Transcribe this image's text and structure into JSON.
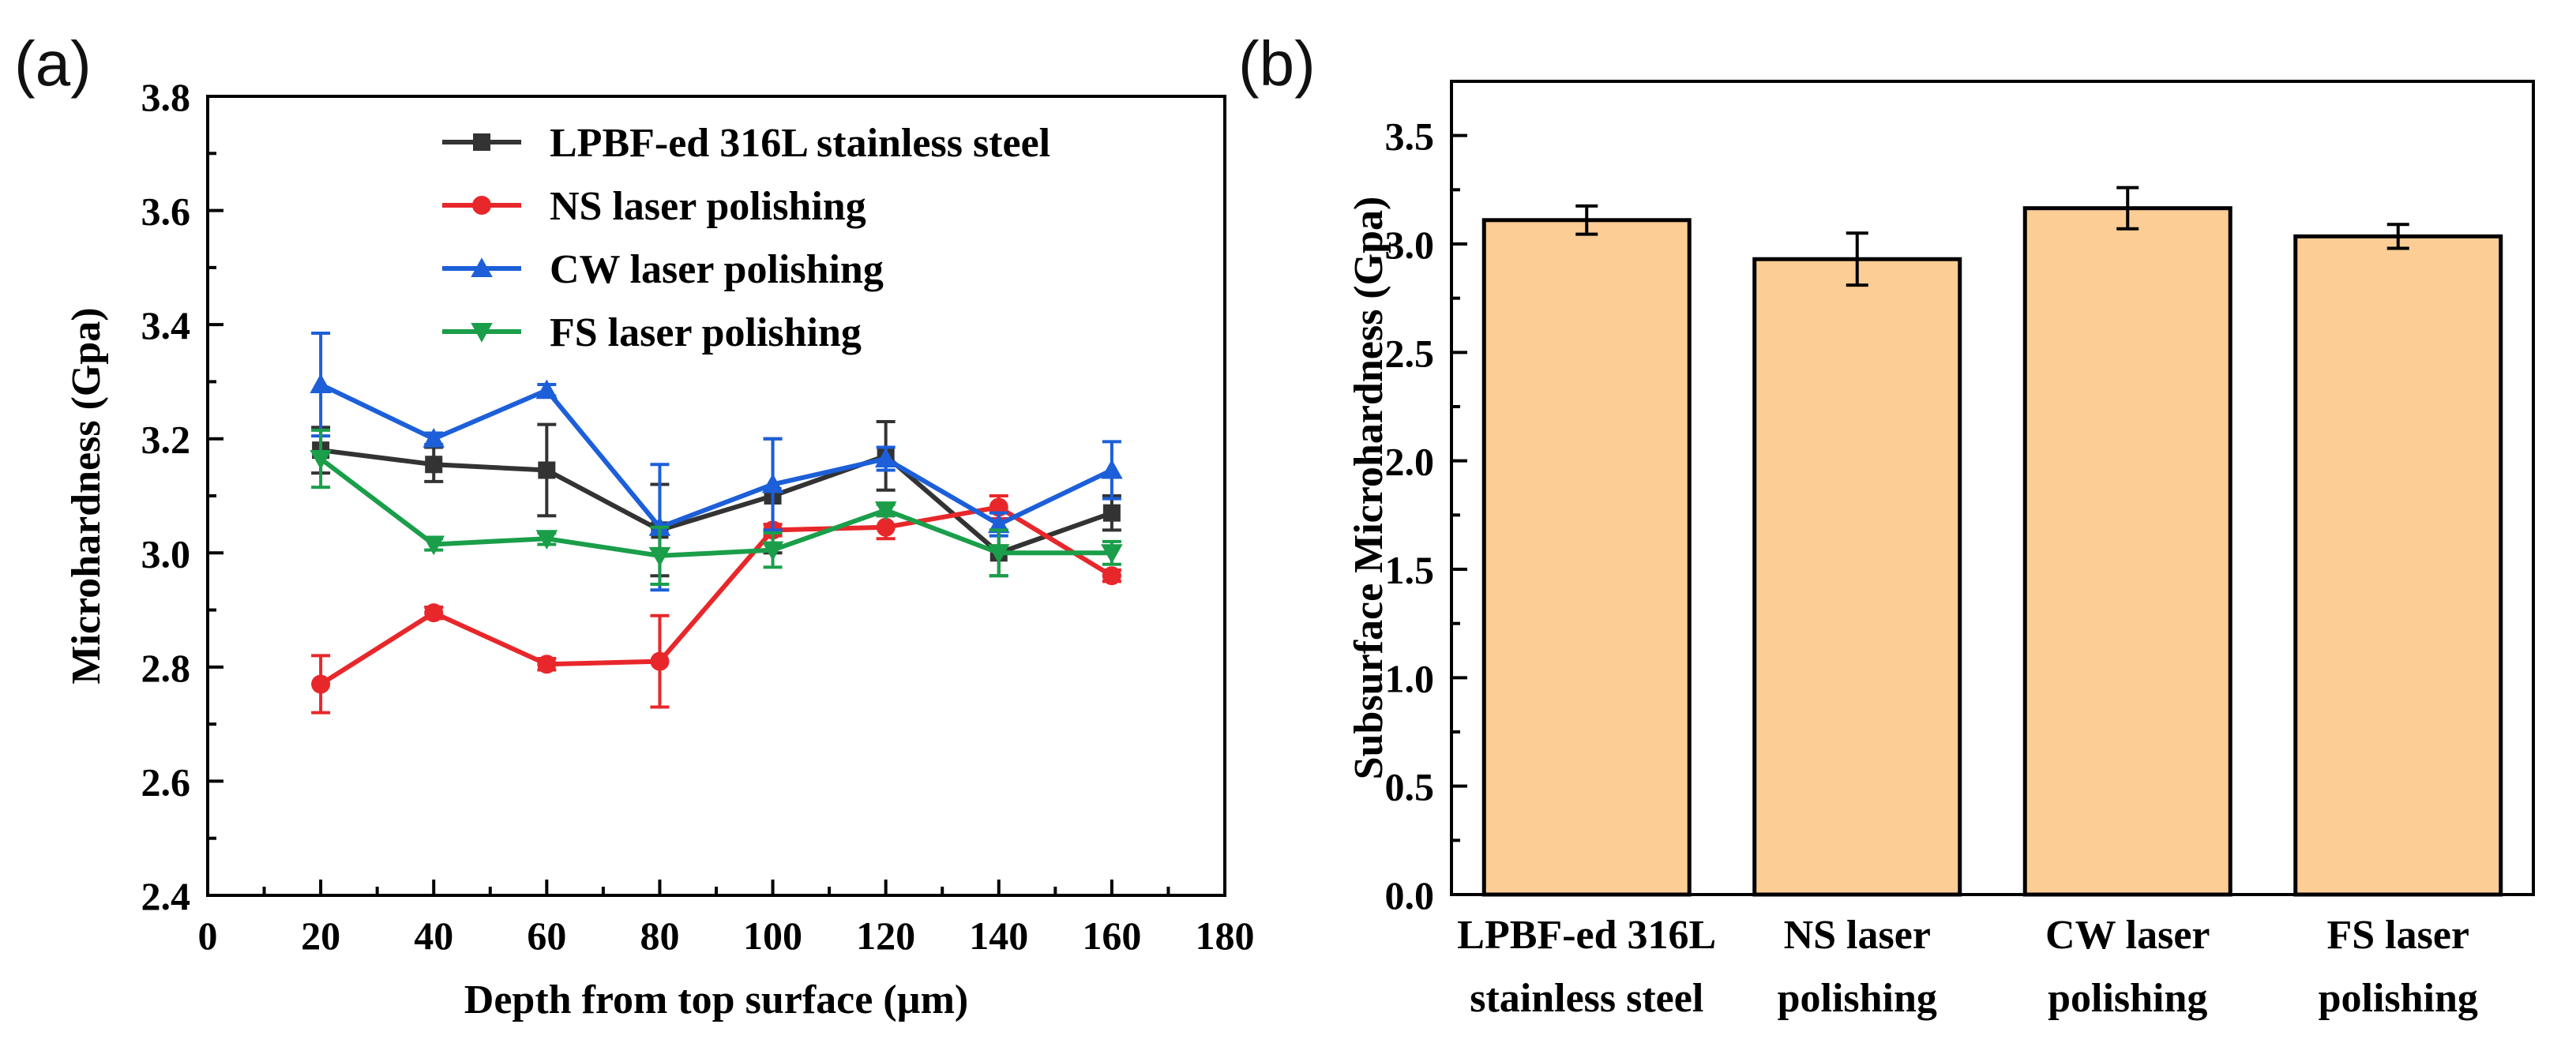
{
  "chart_data": [
    {
      "panel_label": "(a)",
      "type": "line",
      "title": "",
      "xlabel": "Depth from top surface (µm)",
      "ylabel": "Microhardness (Gpa)",
      "xlim": [
        0,
        180
      ],
      "ylim": [
        2.4,
        3.8
      ],
      "xticks": [
        "0",
        "20",
        "40",
        "60",
        "80",
        "100",
        "120",
        "140",
        "160",
        "180"
      ],
      "yticks": [
        "2.4",
        "2.6",
        "2.8",
        "3.0",
        "3.2",
        "3.4",
        "3.6",
        "3.8"
      ],
      "x": [
        20,
        40,
        60,
        80,
        100,
        120,
        140,
        160
      ],
      "legend_position": "top-right",
      "series": [
        {
          "name": "LPBF-ed 316L stainless steel",
          "color": "#333333",
          "marker": "square",
          "values": [
            3.18,
            3.155,
            3.145,
            3.04,
            3.1,
            3.17,
            3.0,
            3.07
          ],
          "errors": [
            0.04,
            0.03,
            0.08,
            0.08,
            0.1,
            0.06,
            0.04,
            0.03
          ]
        },
        {
          "name": "NS laser polishing",
          "color": "#e8272b",
          "marker": "circle",
          "values": [
            2.77,
            2.895,
            2.805,
            2.81,
            3.04,
            3.045,
            3.08,
            2.96
          ],
          "errors": [
            0.05,
            0.01,
            0.01,
            0.08,
            0.01,
            0.02,
            0.02,
            0.01
          ]
        },
        {
          "name": "CW laser polishing",
          "color": "#1c5fd8",
          "marker": "triangle-up",
          "values": [
            3.295,
            3.2,
            3.285,
            3.045,
            3.12,
            3.165,
            3.05,
            3.145
          ],
          "errors": [
            0.09,
            0.01,
            0.01,
            0.11,
            0.08,
            0.02,
            0.02,
            0.05
          ]
        },
        {
          "name": "FS laser polishing",
          "color": "#1a9e4a",
          "marker": "triangle-down",
          "values": [
            3.165,
            3.015,
            3.025,
            2.995,
            3.005,
            3.075,
            3.0,
            3.0
          ],
          "errors": [
            0.05,
            0.01,
            0.01,
            0.05,
            0.03,
            0.01,
            0.04,
            0.02
          ]
        }
      ]
    },
    {
      "panel_label": "(b)",
      "type": "bar",
      "title": "",
      "xlabel": "",
      "ylabel": "Subsurface Microhardness (Gpa)",
      "ylim": [
        0.0,
        3.75
      ],
      "yticks": [
        "0.0",
        "0.5",
        "1.0",
        "1.5",
        "2.0",
        "2.5",
        "3.0",
        "3.5"
      ],
      "bar_color": "#fccd94",
      "categories": [
        [
          "LPBF-ed 316L",
          "stainless steel"
        ],
        [
          "NS laser",
          "polishing"
        ],
        [
          "CW laser",
          "polishing"
        ],
        [
          "FS laser",
          "polishing"
        ]
      ],
      "values": [
        3.11,
        2.93,
        3.165,
        3.035
      ],
      "errors": [
        0.065,
        0.12,
        0.095,
        0.055
      ]
    }
  ]
}
